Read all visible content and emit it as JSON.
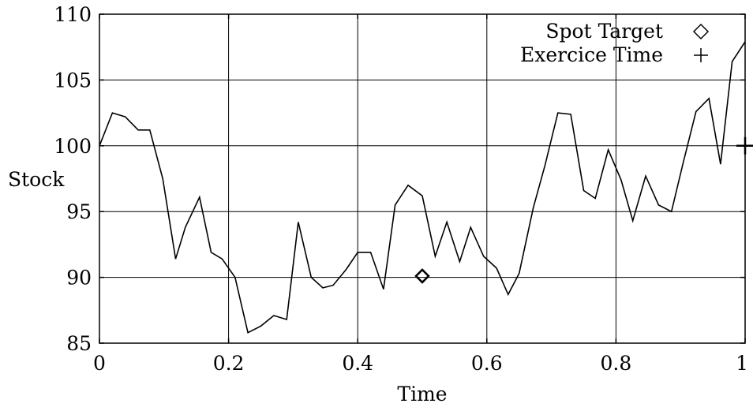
{
  "chart_data": {
    "type": "line",
    "title": "",
    "xlabel": "Time",
    "ylabel": "Stock",
    "xlim": [
      0,
      1
    ],
    "ylim": [
      85,
      110
    ],
    "grid": true,
    "legend_position": "top-right",
    "x_ticks": [
      0,
      0.2,
      0.4,
      0.6,
      0.8,
      1
    ],
    "x_tick_labels": [
      "0",
      "0.2",
      "0.4",
      "0.6",
      "0.8",
      "1"
    ],
    "y_ticks": [
      85,
      90,
      95,
      100,
      105,
      110
    ],
    "y_tick_labels": [
      "85",
      "90",
      "95",
      "100",
      "105",
      "110"
    ],
    "series": [
      {
        "type": "line",
        "color": "#000000",
        "x": [
          0,
          0.02,
          0.04,
          0.06,
          0.078,
          0.098,
          0.118,
          0.133,
          0.155,
          0.173,
          0.19,
          0.21,
          0.23,
          0.25,
          0.27,
          0.29,
          0.308,
          0.328,
          0.346,
          0.362,
          0.382,
          0.4,
          0.42,
          0.44,
          0.458,
          0.478,
          0.5,
          0.52,
          0.538,
          0.558,
          0.575,
          0.595,
          0.615,
          0.633,
          0.65,
          0.672,
          0.69,
          0.71,
          0.73,
          0.75,
          0.768,
          0.788,
          0.808,
          0.826,
          0.846,
          0.866,
          0.886,
          0.904,
          0.924,
          0.944,
          0.962,
          0.98,
          1.0
        ],
        "y": [
          100,
          102.5,
          102.2,
          101.2,
          101.2,
          97.5,
          91.4,
          93.8,
          96.1,
          91.9,
          91.4,
          90,
          85.8,
          86.3,
          87.1,
          86.8,
          94.2,
          90,
          89.2,
          89.4,
          90.6,
          91.9,
          91.9,
          89.1,
          95.5,
          97,
          96.2,
          91.6,
          94.2,
          91.2,
          93.8,
          91.6,
          90.7,
          88.7,
          90.3,
          95.3,
          98.5,
          102.5,
          102.4,
          96.6,
          96,
          99.7,
          97.4,
          94.3,
          97.7,
          95.5,
          95,
          98.7,
          102.6,
          103.6,
          98.6,
          106.4,
          107.9
        ]
      },
      {
        "name": "Spot Target",
        "type": "scatter",
        "marker": "diamond",
        "x": [
          0.5
        ],
        "y": [
          90.1
        ]
      },
      {
        "name": "Exercice Time",
        "type": "scatter",
        "marker": "plus",
        "x": [
          1.0
        ],
        "y": [
          100
        ]
      }
    ]
  }
}
